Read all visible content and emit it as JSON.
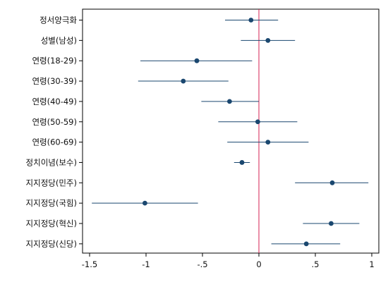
{
  "chart_data": {
    "type": "coefficient-plot",
    "title": "",
    "xlabel": "",
    "ylabel": "",
    "xlim": [
      -1.5,
      1
    ],
    "x_ticks": [
      -1.5,
      -1,
      -0.5,
      0,
      0.5,
      1
    ],
    "x_tick_labels": [
      "-1.5",
      "-1",
      "-.5",
      "0",
      ".5",
      "1"
    ],
    "reference_line": 0,
    "grid": false,
    "legend": "none",
    "colors": {
      "point": "#1a476f",
      "interval": "#1a476f",
      "reference_line": "#d62050",
      "frame": "#000000",
      "background": "#ffffff"
    },
    "items": [
      {
        "label": "정서양극화",
        "estimate": -0.07,
        "lower": -0.3,
        "upper": 0.17
      },
      {
        "label": "성별(남성)",
        "estimate": 0.08,
        "lower": -0.16,
        "upper": 0.32
      },
      {
        "label": "연령(18-29)",
        "estimate": -0.55,
        "lower": -1.05,
        "upper": -0.06
      },
      {
        "label": "연령(30-39)",
        "estimate": -0.67,
        "lower": -1.07,
        "upper": -0.27
      },
      {
        "label": "연령(40-49)",
        "estimate": -0.26,
        "lower": -0.51,
        "upper": 0.0
      },
      {
        "label": "연령(50-59)",
        "estimate": -0.01,
        "lower": -0.36,
        "upper": 0.34
      },
      {
        "label": "연령(60-69)",
        "estimate": 0.08,
        "lower": -0.28,
        "upper": 0.44
      },
      {
        "label": "정치이념(보수)",
        "estimate": -0.15,
        "lower": -0.22,
        "upper": -0.08
      },
      {
        "label": "지지정당(민주)",
        "estimate": 0.65,
        "lower": 0.32,
        "upper": 0.97
      },
      {
        "label": "지지정당(국힘)",
        "estimate": -1.01,
        "lower": -1.48,
        "upper": -0.54
      },
      {
        "label": "지지정당(혁신)",
        "estimate": 0.64,
        "lower": 0.39,
        "upper": 0.89
      },
      {
        "label": "지지정당(신당)",
        "estimate": 0.42,
        "lower": 0.11,
        "upper": 0.72
      }
    ]
  }
}
